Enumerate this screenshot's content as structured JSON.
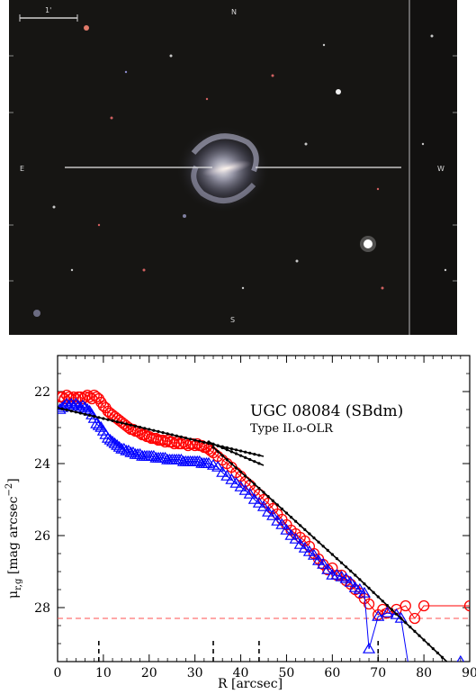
{
  "image_panel": {
    "scale_label": "1'",
    "compass_n": "N",
    "compass_s": "S",
    "compass_e": "E",
    "compass_w": "W"
  },
  "chart_data": {
    "type": "scatter",
    "title": "UGC 08084 (SBdm)",
    "subtitle": "Type II.o-OLR",
    "xlabel": "R [arcsec]",
    "ylabel": "μ_{r,g} [mag arcsec^{-2}]",
    "xlim": [
      0,
      90
    ],
    "ylim": [
      29.5,
      21
    ],
    "y_inverted": true,
    "x_ticks": [
      0,
      10,
      20,
      30,
      40,
      50,
      60,
      70,
      80,
      90
    ],
    "y_ticks": [
      22,
      24,
      26,
      28
    ],
    "x_tick_labels": [
      "0",
      "10",
      "20",
      "30",
      "40",
      "50",
      "60",
      "70",
      "80",
      "90"
    ],
    "y_tick_labels": [
      "22",
      "24",
      "26",
      "28"
    ],
    "sky_limit_mag": 28.3,
    "markers_R": [
      9,
      34,
      44,
      70
    ],
    "series": [
      {
        "marker": "circle",
        "color": "#ff0000",
        "points": [
          [
            0.5,
            22.15
          ],
          [
            1,
            22.15
          ],
          [
            1.5,
            22.2
          ],
          [
            2,
            22.1
          ],
          [
            2.5,
            22.15
          ],
          [
            3,
            22.2
          ],
          [
            3.5,
            22.15
          ],
          [
            4,
            22.2
          ],
          [
            4.5,
            22.15
          ],
          [
            5,
            22.15
          ],
          [
            5.5,
            22.2
          ],
          [
            6,
            22.15
          ],
          [
            6.5,
            22.1
          ],
          [
            7,
            22.15
          ],
          [
            7.5,
            22.2
          ],
          [
            8,
            22.1
          ],
          [
            8.5,
            22.15
          ],
          [
            9,
            22.2
          ],
          [
            9.5,
            22.3
          ],
          [
            10,
            22.4
          ],
          [
            10.5,
            22.45
          ],
          [
            11,
            22.55
          ],
          [
            11.5,
            22.6
          ],
          [
            12,
            22.65
          ],
          [
            12.5,
            22.7
          ],
          [
            13,
            22.75
          ],
          [
            13.5,
            22.8
          ],
          [
            14,
            22.85
          ],
          [
            14.5,
            22.9
          ],
          [
            15,
            22.95
          ],
          [
            15.5,
            23.0
          ],
          [
            16,
            23.05
          ],
          [
            16.5,
            23.05
          ],
          [
            17,
            23.1
          ],
          [
            17.5,
            23.1
          ],
          [
            18,
            23.15
          ],
          [
            18.5,
            23.2
          ],
          [
            19,
            23.2
          ],
          [
            19.5,
            23.25
          ],
          [
            20,
            23.25
          ],
          [
            20.5,
            23.3
          ],
          [
            21,
            23.3
          ],
          [
            21.5,
            23.3
          ],
          [
            22,
            23.35
          ],
          [
            22.5,
            23.35
          ],
          [
            23,
            23.35
          ],
          [
            23.5,
            23.4
          ],
          [
            24,
            23.35
          ],
          [
            24.5,
            23.4
          ],
          [
            25,
            23.4
          ],
          [
            25.5,
            23.45
          ],
          [
            26,
            23.4
          ],
          [
            26.5,
            23.45
          ],
          [
            27,
            23.45
          ],
          [
            27.5,
            23.4
          ],
          [
            28,
            23.45
          ],
          [
            28.5,
            23.5
          ],
          [
            29,
            23.45
          ],
          [
            29.5,
            23.45
          ],
          [
            30,
            23.5
          ],
          [
            30.5,
            23.45
          ],
          [
            31,
            23.5
          ],
          [
            31.5,
            23.5
          ],
          [
            32,
            23.55
          ],
          [
            32.5,
            23.55
          ],
          [
            33,
            23.6
          ],
          [
            33.5,
            23.65
          ],
          [
            34,
            23.7
          ],
          [
            35,
            23.8
          ],
          [
            36,
            23.9
          ],
          [
            37,
            24.0
          ],
          [
            38,
            24.1
          ],
          [
            39,
            24.25
          ],
          [
            40,
            24.35
          ],
          [
            41,
            24.5
          ],
          [
            42,
            24.6
          ],
          [
            43,
            24.75
          ],
          [
            44,
            24.85
          ],
          [
            45,
            25.0
          ],
          [
            46,
            25.1
          ],
          [
            47,
            25.25
          ],
          [
            48,
            25.4
          ],
          [
            49,
            25.55
          ],
          [
            50,
            25.7
          ],
          [
            51,
            25.85
          ],
          [
            52,
            25.95
          ],
          [
            53,
            26.05
          ],
          [
            54,
            26.15
          ],
          [
            55,
            26.3
          ],
          [
            56,
            26.5
          ],
          [
            57,
            26.65
          ],
          [
            58,
            26.8
          ],
          [
            59,
            26.95
          ],
          [
            60,
            26.9
          ],
          [
            61,
            27.1
          ],
          [
            62,
            27.1
          ],
          [
            63,
            27.25
          ],
          [
            64,
            27.35
          ],
          [
            65,
            27.5
          ],
          [
            66,
            27.6
          ],
          [
            67,
            27.75
          ],
          [
            68,
            27.9
          ],
          [
            70,
            28.2
          ],
          [
            71,
            28.05
          ],
          [
            72,
            28.15
          ],
          [
            74,
            28.05
          ],
          [
            76,
            27.95
          ],
          [
            78,
            28.3
          ],
          [
            80,
            27.95
          ],
          [
            90,
            27.95
          ]
        ]
      },
      {
        "marker": "triangle",
        "color": "#0000ff",
        "points": [
          [
            0.5,
            22.5
          ],
          [
            1,
            22.45
          ],
          [
            1.5,
            22.4
          ],
          [
            2,
            22.35
          ],
          [
            2.5,
            22.4
          ],
          [
            3,
            22.35
          ],
          [
            3.5,
            22.4
          ],
          [
            4,
            22.35
          ],
          [
            4.5,
            22.4
          ],
          [
            5,
            22.45
          ],
          [
            5.5,
            22.4
          ],
          [
            6,
            22.45
          ],
          [
            6.5,
            22.5
          ],
          [
            7,
            22.55
          ],
          [
            7.5,
            22.65
          ],
          [
            8,
            22.75
          ],
          [
            8.5,
            22.9
          ],
          [
            9,
            22.95
          ],
          [
            9.5,
            23.0
          ],
          [
            10,
            23.1
          ],
          [
            10.5,
            23.2
          ],
          [
            11,
            23.3
          ],
          [
            11.5,
            23.35
          ],
          [
            12,
            23.4
          ],
          [
            12.5,
            23.45
          ],
          [
            13,
            23.5
          ],
          [
            13.5,
            23.55
          ],
          [
            14,
            23.6
          ],
          [
            14.5,
            23.6
          ],
          [
            15,
            23.65
          ],
          [
            15.5,
            23.65
          ],
          [
            16,
            23.7
          ],
          [
            16.5,
            23.7
          ],
          [
            17,
            23.75
          ],
          [
            17.5,
            23.75
          ],
          [
            18,
            23.75
          ],
          [
            18.5,
            23.8
          ],
          [
            19,
            23.8
          ],
          [
            19.5,
            23.8
          ],
          [
            20,
            23.8
          ],
          [
            20.5,
            23.8
          ],
          [
            21,
            23.8
          ],
          [
            21.5,
            23.85
          ],
          [
            22,
            23.85
          ],
          [
            22.5,
            23.85
          ],
          [
            23,
            23.85
          ],
          [
            23.5,
            23.85
          ],
          [
            24,
            23.9
          ],
          [
            24.5,
            23.9
          ],
          [
            25,
            23.9
          ],
          [
            25.5,
            23.9
          ],
          [
            26,
            23.9
          ],
          [
            26.5,
            23.9
          ],
          [
            27,
            23.9
          ],
          [
            27.5,
            23.95
          ],
          [
            28,
            23.95
          ],
          [
            28.5,
            23.95
          ],
          [
            29,
            23.95
          ],
          [
            29.5,
            23.95
          ],
          [
            30,
            23.95
          ],
          [
            30.5,
            23.95
          ],
          [
            31,
            23.95
          ],
          [
            31.5,
            24.0
          ],
          [
            32,
            24.0
          ],
          [
            32.5,
            24.0
          ],
          [
            33,
            24.0
          ],
          [
            34,
            24.05
          ],
          [
            35,
            24.1
          ],
          [
            36,
            24.25
          ],
          [
            37,
            24.35
          ],
          [
            38,
            24.45
          ],
          [
            39,
            24.55
          ],
          [
            40,
            24.65
          ],
          [
            41,
            24.75
          ],
          [
            42,
            24.85
          ],
          [
            43,
            25.0
          ],
          [
            44,
            25.1
          ],
          [
            45,
            25.2
          ],
          [
            46,
            25.35
          ],
          [
            47,
            25.45
          ],
          [
            48,
            25.6
          ],
          [
            49,
            25.7
          ],
          [
            50,
            25.85
          ],
          [
            51,
            26.0
          ],
          [
            52,
            26.1
          ],
          [
            53,
            26.25
          ],
          [
            54,
            26.35
          ],
          [
            55,
            26.45
          ],
          [
            56,
            26.55
          ],
          [
            57,
            26.7
          ],
          [
            58,
            26.8
          ],
          [
            59,
            26.95
          ],
          [
            60,
            27.1
          ],
          [
            61,
            27.1
          ],
          [
            62,
            27.15
          ],
          [
            63,
            27.2
          ],
          [
            64,
            27.3
          ],
          [
            65,
            27.45
          ],
          [
            66,
            27.5
          ],
          [
            67,
            27.6
          ],
          [
            68,
            29.15
          ],
          [
            70,
            28.25
          ],
          [
            72,
            28.15
          ],
          [
            74,
            28.2
          ],
          [
            75,
            28.3
          ],
          [
            77,
            29.9
          ],
          [
            88,
            29.5
          ]
        ]
      }
    ],
    "fits": [
      {
        "name": "",
        "color": "#000000",
        "points": [
          [
            0,
            22.45
          ],
          [
            10,
            22.75
          ],
          [
            20,
            23.05
          ],
          [
            30,
            23.35
          ],
          [
            40,
            23.65
          ],
          [
            45,
            23.8
          ]
        ]
      },
      {
        "name": "",
        "color": "#000000",
        "points": [
          [
            33,
            23.4
          ],
          [
            45,
            24.05
          ]
        ]
      },
      {
        "name": "",
        "color": "#000000",
        "points": [
          [
            34,
            23.55
          ],
          [
            45,
            24.8
          ],
          [
            55,
            25.95
          ],
          [
            65,
            27.1
          ],
          [
            75,
            28.3
          ],
          [
            85,
            29.5
          ]
        ]
      }
    ]
  }
}
